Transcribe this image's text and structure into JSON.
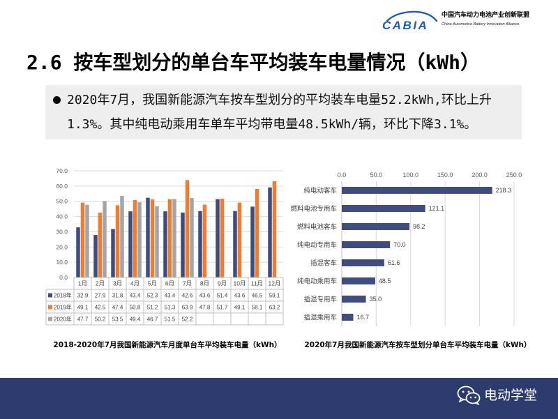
{
  "header": {
    "logo_text": "CABIA",
    "org_name_cn": "中国汽车动力电池产业创新联盟",
    "org_name_en": "China Automotive Battery Innovation Alliance",
    "brand_color": "#1d5fae"
  },
  "slide": {
    "title": "2.6 按车型划分的单台车平均装车电量情况（kWh）",
    "bullet": {
      "icon": "bullet-dot",
      "lines": [
        "2020年7月，我国新能源汽车按车型划分的平均装车电量52.2kWh,环比上升",
        "1.3%。其中纯电动乘用车单车平均带电量48.5kWh/辆，环比下降3.1%。"
      ]
    }
  },
  "chart_data": [
    {
      "type": "bar",
      "title": "2018-2020年7月我国新能源汽车月度单台车平均装车电量（kWh）",
      "categories": [
        "1月",
        "2月",
        "3月",
        "4月",
        "5月",
        "6月",
        "7月",
        "8月",
        "9月",
        "10月",
        "11月",
        "12月"
      ],
      "series": [
        {
          "name": "2018年",
          "color": "#3f4c80",
          "values": [
            32.9,
            27.9,
            31.8,
            43.4,
            52.3,
            43.4,
            42.6,
            43.6,
            51.4,
            43.6,
            46.5,
            59.1
          ]
        },
        {
          "name": "2019年",
          "color": "#ed7d31",
          "values": [
            49.1,
            42.5,
            47.4,
            50.8,
            51.2,
            51.3,
            63.9,
            47.8,
            51.7,
            49.1,
            58.1,
            63.2
          ]
        },
        {
          "name": "2020年",
          "color": "#a5a5a5",
          "values": [
            47.7,
            50.2,
            53.5,
            49.4,
            46.7,
            51.5,
            52.2,
            null,
            null,
            null,
            null,
            null
          ]
        }
      ],
      "ylim": [
        0,
        70
      ],
      "yticks": [
        0,
        10,
        20,
        30,
        40,
        50,
        60,
        70
      ],
      "grid": true,
      "legend": "data table",
      "data_table": true
    },
    {
      "type": "bar",
      "orientation": "horizontal",
      "title": "2020年7月我国新能源汽车按车型划分单台车平均装车电量（kWh）",
      "categories": [
        "纯电动客车",
        "燃料电池专用车",
        "燃料电池客车",
        "纯电动专用车",
        "插混客车",
        "纯电动乘用车",
        "插混专用车",
        "插混乘用车"
      ],
      "values": [
        218.3,
        121.1,
        98.2,
        70.0,
        61.6,
        48.5,
        35.0,
        16.7
      ],
      "color": "#3f4c80",
      "xlim": [
        0,
        250
      ],
      "xticks": [
        0,
        50,
        100,
        150,
        200,
        250
      ],
      "xaxis_position": "top",
      "grid": true,
      "data_labels": true
    }
  ],
  "footer": {
    "band_color": "#2d3b6c",
    "watermark_icon": "wechat-icon",
    "watermark_text": "电动学堂"
  }
}
